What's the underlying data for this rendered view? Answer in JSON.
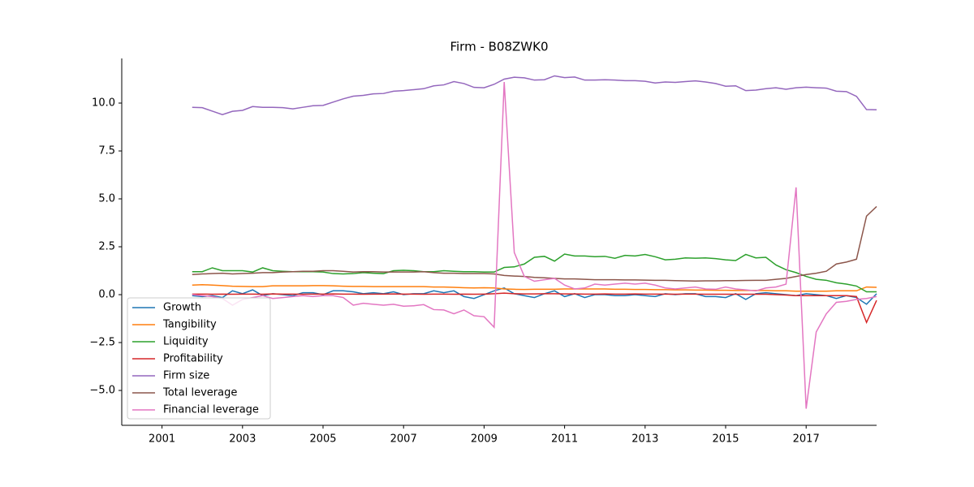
{
  "chart_data": {
    "type": "line",
    "title": "Firm - B08ZWK0",
    "x": [
      2001.75,
      2002,
      2002.25,
      2002.5,
      2002.75,
      2003,
      2003.25,
      2003.5,
      2003.75,
      2004,
      2004.25,
      2004.5,
      2004.75,
      2005,
      2005.25,
      2005.5,
      2005.75,
      2006,
      2006.25,
      2006.5,
      2006.75,
      2007,
      2007.25,
      2007.5,
      2007.75,
      2008,
      2008.25,
      2008.5,
      2008.75,
      2009,
      2009.25,
      2009.5,
      2009.75,
      2010,
      2010.25,
      2010.5,
      2010.75,
      2011,
      2011.25,
      2011.5,
      2011.75,
      2012,
      2012.25,
      2012.5,
      2012.75,
      2013,
      2013.25,
      2013.5,
      2013.75,
      2014,
      2014.25,
      2014.5,
      2014.75,
      2015,
      2015.25,
      2015.5,
      2015.75,
      2016,
      2016.25,
      2016.5,
      2016.75,
      2017,
      2017.25,
      2017.5,
      2017.75,
      2018,
      2018.25,
      2018.5,
      2018.75
    ],
    "series": [
      {
        "name": "Growth",
        "color": "#1f77b4",
        "values": [
          -0.05,
          -0.1,
          -0.05,
          -0.15,
          0.2,
          0.05,
          0.25,
          -0.05,
          0.05,
          0,
          -0.05,
          0.1,
          0.1,
          0,
          0.2,
          0.2,
          0.15,
          0.05,
          0.1,
          0.05,
          0.15,
          0,
          0.05,
          0.05,
          0.2,
          0.1,
          0.2,
          -0.1,
          -0.2,
          0,
          0.2,
          0.35,
          0.05,
          -0.05,
          -0.15,
          0.05,
          0.2,
          -0.1,
          0.05,
          -0.15,
          0,
          0,
          -0.05,
          -0.05,
          0,
          -0.05,
          -0.1,
          0.05,
          0,
          0.05,
          0.05,
          -0.1,
          -0.1,
          -0.15,
          0.05,
          -0.25,
          0.05,
          0.1,
          0.05,
          0,
          -0.05,
          0.05,
          0,
          -0.05,
          -0.2,
          -0.05,
          -0.15,
          -0.5,
          0.05
        ]
      },
      {
        "name": "Tangibility",
        "color": "#ff7f0e",
        "values": [
          0.5,
          0.52,
          0.5,
          0.47,
          0.44,
          0.43,
          0.42,
          0.42,
          0.46,
          0.46,
          0.46,
          0.46,
          0.47,
          0.47,
          0.46,
          0.44,
          0.43,
          0.43,
          0.42,
          0.42,
          0.42,
          0.42,
          0.42,
          0.42,
          0.4,
          0.4,
          0.38,
          0.36,
          0.35,
          0.36,
          0.35,
          0.3,
          0.28,
          0.27,
          0.28,
          0.28,
          0.28,
          0.3,
          0.3,
          0.3,
          0.3,
          0.3,
          0.28,
          0.28,
          0.27,
          0.27,
          0.26,
          0.26,
          0.25,
          0.25,
          0.24,
          0.24,
          0.23,
          0.23,
          0.22,
          0.22,
          0.22,
          0.22,
          0.2,
          0.2,
          0.18,
          0.18,
          0.18,
          0.18,
          0.2,
          0.2,
          0.2,
          0.4,
          0.38
        ]
      },
      {
        "name": "Liquidity",
        "color": "#2ca02c",
        "values": [
          1.2,
          1.2,
          1.4,
          1.25,
          1.25,
          1.25,
          1.18,
          1.4,
          1.25,
          1.22,
          1.2,
          1.2,
          1.2,
          1.18,
          1.1,
          1.08,
          1.1,
          1.15,
          1.12,
          1.1,
          1.25,
          1.27,
          1.25,
          1.2,
          1.2,
          1.25,
          1.22,
          1.2,
          1.2,
          1.18,
          1.18,
          1.42,
          1.45,
          1.6,
          1.95,
          2,
          1.75,
          2.12,
          2.02,
          2.02,
          1.98,
          2,
          1.9,
          2.05,
          2.02,
          2.1,
          1.98,
          1.82,
          1.85,
          1.92,
          1.9,
          1.92,
          1.88,
          1.82,
          1.78,
          2.1,
          1.92,
          1.95,
          1.55,
          1.3,
          1.15,
          0.95,
          0.8,
          0.75,
          0.62,
          0.55,
          0.45,
          0.15,
          0.15
        ]
      },
      {
        "name": "Profitability",
        "color": "#d62728",
        "values": [
          0.03,
          0.03,
          0.02,
          0.03,
          0.02,
          0.03,
          0.03,
          0.02,
          0.04,
          0.03,
          0.03,
          0.02,
          0.03,
          0.03,
          0.04,
          0.03,
          0.03,
          0.02,
          0.03,
          0.03,
          0.04,
          0.03,
          0.03,
          0.02,
          0.03,
          0.03,
          0.02,
          0.03,
          0.02,
          0.03,
          0.05,
          0.08,
          0.05,
          0.04,
          0.04,
          0.05,
          0.05,
          0.04,
          0.04,
          0.03,
          0.03,
          0.04,
          0.03,
          0.03,
          0.04,
          0.03,
          0.03,
          0.03,
          0.02,
          0.03,
          0.03,
          0.02,
          0.02,
          0.02,
          0.02,
          0.02,
          0.02,
          0.02,
          0,
          -0.02,
          -0.05,
          -0.05,
          -0.05,
          -0.05,
          -0.05,
          -0.05,
          -0.1,
          -1.45,
          -0.3
        ]
      },
      {
        "name": "Firm size",
        "color": "#9467bd",
        "values": [
          9.78,
          9.76,
          9.58,
          9.4,
          9.57,
          9.62,
          9.82,
          9.78,
          9.78,
          9.76,
          9.7,
          9.78,
          9.86,
          9.88,
          10.05,
          10.22,
          10.36,
          10.4,
          10.48,
          10.5,
          10.62,
          10.65,
          10.7,
          10.75,
          10.9,
          10.95,
          11.12,
          11.02,
          10.82,
          10.8,
          10.98,
          11.25,
          11.35,
          11.32,
          11.2,
          11.22,
          11.42,
          11.33,
          11.36,
          11.2,
          11.2,
          11.22,
          11.2,
          11.17,
          11.17,
          11.14,
          11.05,
          11.1,
          11.08,
          11.12,
          11.16,
          11.1,
          11.02,
          10.88,
          10.9,
          10.65,
          10.68,
          10.75,
          10.8,
          10.72,
          10.8,
          10.83,
          10.8,
          10.78,
          10.62,
          10.6,
          10.35,
          9.66,
          9.65
        ]
      },
      {
        "name": "Total leverage",
        "color": "#8c564b",
        "values": [
          1.05,
          1.08,
          1.1,
          1.12,
          1.08,
          1.1,
          1.12,
          1.15,
          1.15,
          1.18,
          1.2,
          1.22,
          1.22,
          1.25,
          1.25,
          1.22,
          1.18,
          1.2,
          1.2,
          1.18,
          1.18,
          1.18,
          1.18,
          1.2,
          1.15,
          1.12,
          1.12,
          1.1,
          1.1,
          1.1,
          1.08,
          1,
          0.97,
          0.95,
          0.9,
          0.88,
          0.85,
          0.82,
          0.82,
          0.8,
          0.78,
          0.78,
          0.78,
          0.77,
          0.77,
          0.76,
          0.75,
          0.75,
          0.73,
          0.72,
          0.71,
          0.72,
          0.72,
          0.73,
          0.73,
          0.74,
          0.75,
          0.75,
          0.8,
          0.85,
          0.95,
          1.05,
          1.12,
          1.22,
          1.6,
          1.7,
          1.85,
          4.1,
          4.6
        ]
      },
      {
        "name": "Financial leverage",
        "color": "#e377c2",
        "values": [
          0,
          -0.05,
          -0.1,
          -0.2,
          -0.55,
          -0.25,
          -0.15,
          -0.05,
          -0.2,
          -0.15,
          -0.1,
          -0.05,
          -0.1,
          -0.05,
          -0.05,
          -0.15,
          -0.55,
          -0.45,
          -0.5,
          -0.55,
          -0.5,
          -0.6,
          -0.58,
          -0.52,
          -0.78,
          -0.8,
          -1,
          -0.8,
          -1.1,
          -1.15,
          -1.7,
          11.1,
          2.2,
          0.95,
          0.7,
          0.78,
          0.85,
          0.5,
          0.3,
          0.35,
          0.55,
          0.5,
          0.55,
          0.6,
          0.55,
          0.6,
          0.5,
          0.35,
          0.3,
          0.35,
          0.4,
          0.3,
          0.28,
          0.4,
          0.3,
          0.25,
          0.2,
          0.35,
          0.4,
          0.55,
          5.6,
          -5.95,
          -1.95,
          -1,
          -0.4,
          -0.35,
          -0.25,
          -0.2,
          -0.1
        ]
      }
    ],
    "xlim": [
      2000,
      2018.75
    ],
    "xticks": [
      2001,
      2003,
      2005,
      2007,
      2009,
      2011,
      2013,
      2015,
      2017
    ],
    "ylim": [
      -6.82,
      12.33
    ],
    "yticks": [
      {
        "value": -5,
        "label": "−5.0"
      },
      {
        "value": -2.5,
        "label": "−2.5"
      },
      {
        "value": 0,
        "label": "0.0"
      },
      {
        "value": 2.5,
        "label": "2.5"
      },
      {
        "value": 5,
        "label": "5.0"
      },
      {
        "value": 7.5,
        "label": "7.5"
      },
      {
        "value": 10,
        "label": "10.0"
      }
    ],
    "legend": "lower left"
  }
}
